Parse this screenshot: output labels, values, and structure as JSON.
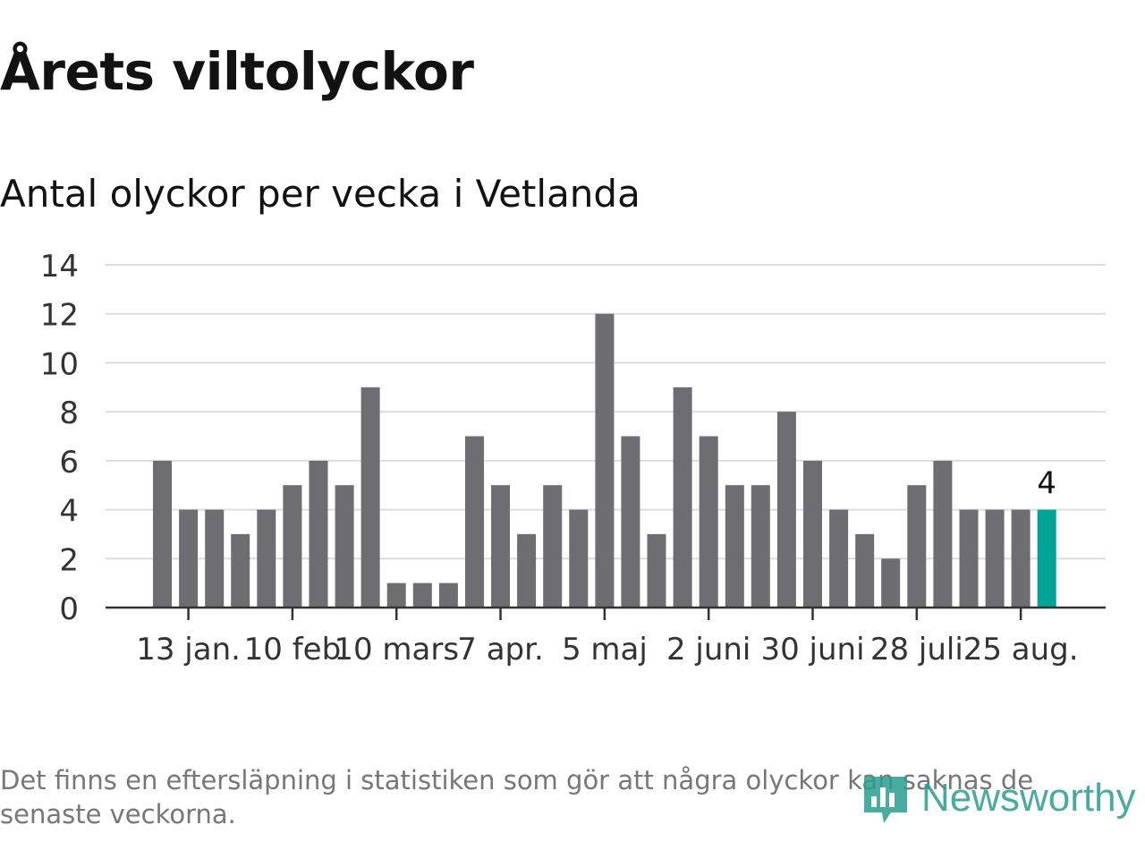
{
  "header": {
    "title": "Årets viltolyckor",
    "subtitle": "Antal olyckor per vecka i Vetlanda"
  },
  "chart_data": {
    "type": "bar",
    "title": "Årets viltolyckor",
    "subtitle": "Antal olyckor per vecka i Vetlanda",
    "xlabel": "",
    "ylabel": "",
    "ylim": [
      0,
      14
    ],
    "yticks": [
      0,
      2,
      4,
      6,
      8,
      10,
      12,
      14
    ],
    "grid": true,
    "values": [
      6,
      4,
      4,
      3,
      4,
      5,
      6,
      5,
      9,
      1,
      1,
      1,
      7,
      5,
      3,
      5,
      4,
      12,
      7,
      3,
      9,
      7,
      5,
      5,
      8,
      6,
      4,
      3,
      2,
      5,
      6,
      4,
      4,
      4,
      4
    ],
    "x_tick_labels": [
      {
        "bar_index": 1,
        "label": "13 jan."
      },
      {
        "bar_index": 5,
        "label": "10 feb"
      },
      {
        "bar_index": 9,
        "label": "10 mars"
      },
      {
        "bar_index": 13,
        "label": "7 apr."
      },
      {
        "bar_index": 17,
        "label": "5 maj"
      },
      {
        "bar_index": 21,
        "label": "2 juni"
      },
      {
        "bar_index": 25,
        "label": "30 juni"
      },
      {
        "bar_index": 29,
        "label": "28 juli"
      },
      {
        "bar_index": 33,
        "label": "25 aug."
      }
    ],
    "highlight": {
      "bar_index": 34,
      "label": "4"
    },
    "colors": {
      "bar": "#6e6d72",
      "highlight": "#00a497",
      "grid": "#dddddd",
      "axis": "#333333",
      "tick_text": "#333333"
    }
  },
  "footer": {
    "note": "Det finns en eftersläpning i statistiken som gör att några olyckor kan saknas de senaste veckorna.",
    "brand": "Newsworthy",
    "brand_icon": "newsworthy-logo-icon",
    "brand_color": "#2a9d8f"
  }
}
